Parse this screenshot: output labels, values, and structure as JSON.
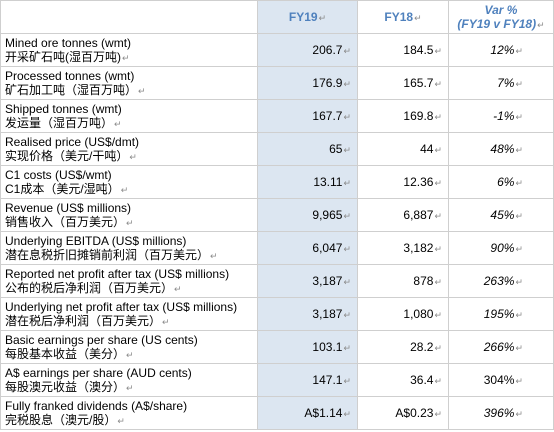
{
  "header": {
    "col_fy19": "FY19",
    "col_fy18": "FY18",
    "col_var_line1": "Var %",
    "col_var_line2": "(FY19 v FY18)"
  },
  "rows": [
    {
      "en": "Mined ore tonnes (wmt)",
      "cn": "开采矿石吨(湿百万吨)",
      "fy19": "206.7",
      "fy18": "184.5",
      "var": "12%",
      "var_italic": true
    },
    {
      "en": "Processed tonnes (wmt)",
      "cn": "矿石加工吨（湿百万吨）",
      "fy19": "176.9",
      "fy18": "165.7",
      "var": "7%",
      "var_italic": true
    },
    {
      "en": "Shipped tonnes (wmt)",
      "cn": "发运量（湿百万吨）",
      "fy19": "167.7",
      "fy18": "169.8",
      "var": "-1%",
      "var_italic": true
    },
    {
      "en": "Realised price (US$/dmt)",
      "cn": "实现价格（美元/干吨）",
      "fy19": "65",
      "fy18": "44",
      "var": "48%",
      "var_italic": true
    },
    {
      "en": "C1 costs (US$/wmt)",
      "cn": "C1成本（美元/湿吨）",
      "fy19": "13.11",
      "fy18": "12.36",
      "var": "6%",
      "var_italic": true
    },
    {
      "en": "Revenue (US$ millions)",
      "cn": "销售收入（百万美元）",
      "fy19": "9,965",
      "fy18": "6,887",
      "var": "45%",
      "var_italic": true
    },
    {
      "en": "Underlying EBITDA (US$ millions)",
      "cn": "潜在息税折旧摊销前利润（百万美元）",
      "fy19": "6,047",
      "fy18": "3,182",
      "var": "90%",
      "var_italic": true
    },
    {
      "en": "Reported net profit after tax (US$ millions)",
      "cn": "公布的税后净利润（百万美元）",
      "fy19": "3,187",
      "fy18": "878",
      "var": "263%",
      "var_italic": true
    },
    {
      "en": "Underlying net profit after tax (US$ millions)",
      "cn": "潜在税后净利润（百万美元）",
      "fy19": "3,187",
      "fy18": "1,080",
      "var": "195%",
      "var_italic": true
    },
    {
      "en": "Basic earnings per share (US cents)",
      "cn": "每股基本收益（美分）",
      "fy19": "103.1",
      "fy18": "28.2",
      "var": "266%",
      "var_italic": true
    },
    {
      "en": "A$ earnings per share (AUD cents)",
      "cn": "每股澳元收益（澳分）",
      "fy19": "147.1",
      "fy18": "36.4",
      "var": "304%",
      "var_italic": false
    },
    {
      "en": "Fully franked dividends (A$/share)",
      "cn": "完税股息（澳元/股）",
      "fy19": "A$1.14",
      "fy18": "A$0.23",
      "var": "396%",
      "var_italic": true
    }
  ]
}
